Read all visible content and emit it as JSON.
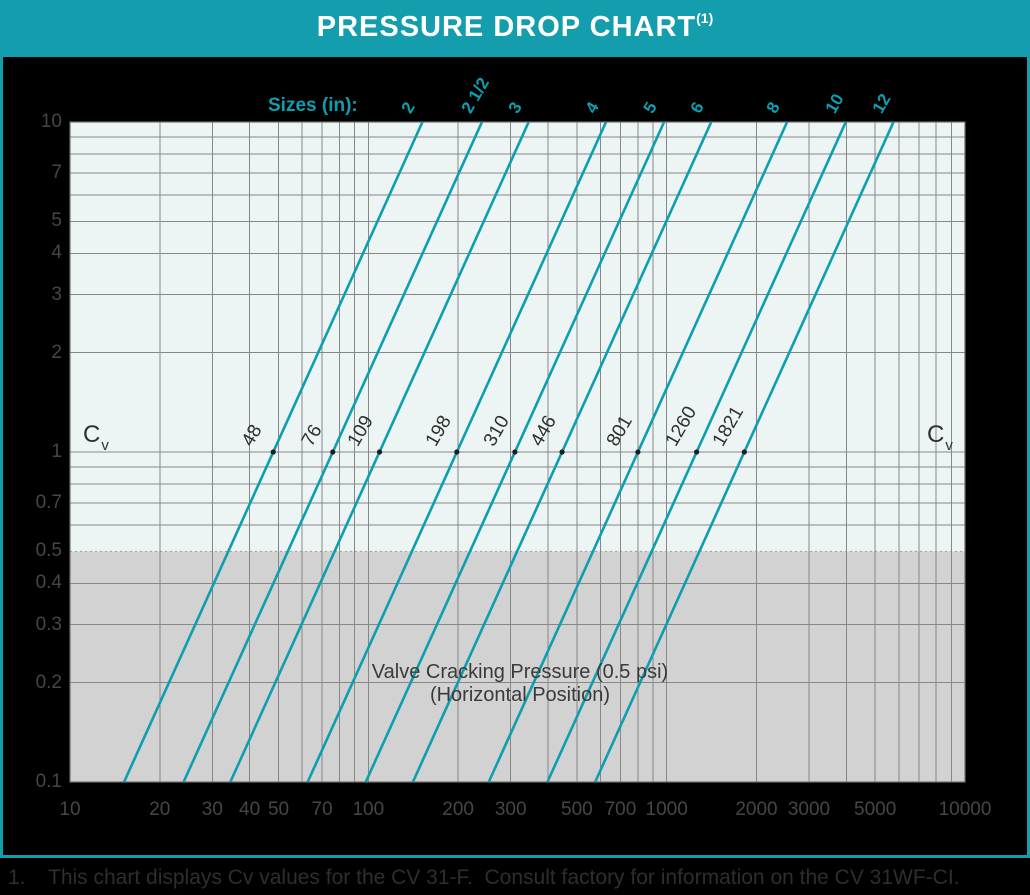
{
  "header": {
    "title": "PRESSURE DROP CHART",
    "superscript": "(1)"
  },
  "chart_data": {
    "type": "line",
    "title": "Pressure Drop Chart",
    "x_axis": {
      "scale": "log",
      "min": 10,
      "max": 10000,
      "tick_labels": [
        10,
        20,
        30,
        40,
        50,
        70,
        100,
        200,
        300,
        500,
        700,
        1000,
        2000,
        3000,
        5000,
        10000
      ]
    },
    "y_axis": {
      "scale": "log",
      "min": 0.1,
      "max": 10,
      "tick_labels": [
        10,
        7,
        5,
        4,
        3,
        2,
        1,
        0.7,
        0.5,
        0.4,
        0.3,
        0.2,
        0.1
      ]
    },
    "grid": "full log minor grid, on",
    "legend_position": "size labels along top edge, Cv values along y=1 line",
    "sizes_heading": "Sizes (in):",
    "cv_axis_label": "C",
    "cv_axis_sub": "v",
    "series": [
      {
        "size": "2",
        "cv": 48
      },
      {
        "size": "2 1/2",
        "cv": 76
      },
      {
        "size": "3",
        "cv": 109
      },
      {
        "size": "4",
        "cv": 198
      },
      {
        "size": "5",
        "cv": 310
      },
      {
        "size": "6",
        "cv": 446
      },
      {
        "size": "8",
        "cv": 801
      },
      {
        "size": "10",
        "cv": 1260
      },
      {
        "size": "12",
        "cv": 1821
      }
    ],
    "line_rule": "each line passes through (x = Cv, y = 1) with slope 2 decades per decade (x = Cv * sqrt(y))",
    "shaded_region": {
      "below_y": 0.5,
      "label_line1": "Valve Cracking Pressure (0.5 psi)",
      "label_line2": "(Horizontal Position)"
    }
  },
  "footnote": {
    "number": "1.",
    "text": "This chart displays Cv values for the CV 31-F.  Consult factory for information on the CV 31WF-CI."
  },
  "colors": {
    "teal_accent": "#0D9EAF",
    "header_bg": "#149DAD",
    "plot_bg": "#EDF5F4",
    "shade_gray": "#D2D2D2",
    "grid_gray": "#878787",
    "axis_text": "#464646",
    "ink": "#2E2E2E",
    "outer_bg": "#000000"
  }
}
